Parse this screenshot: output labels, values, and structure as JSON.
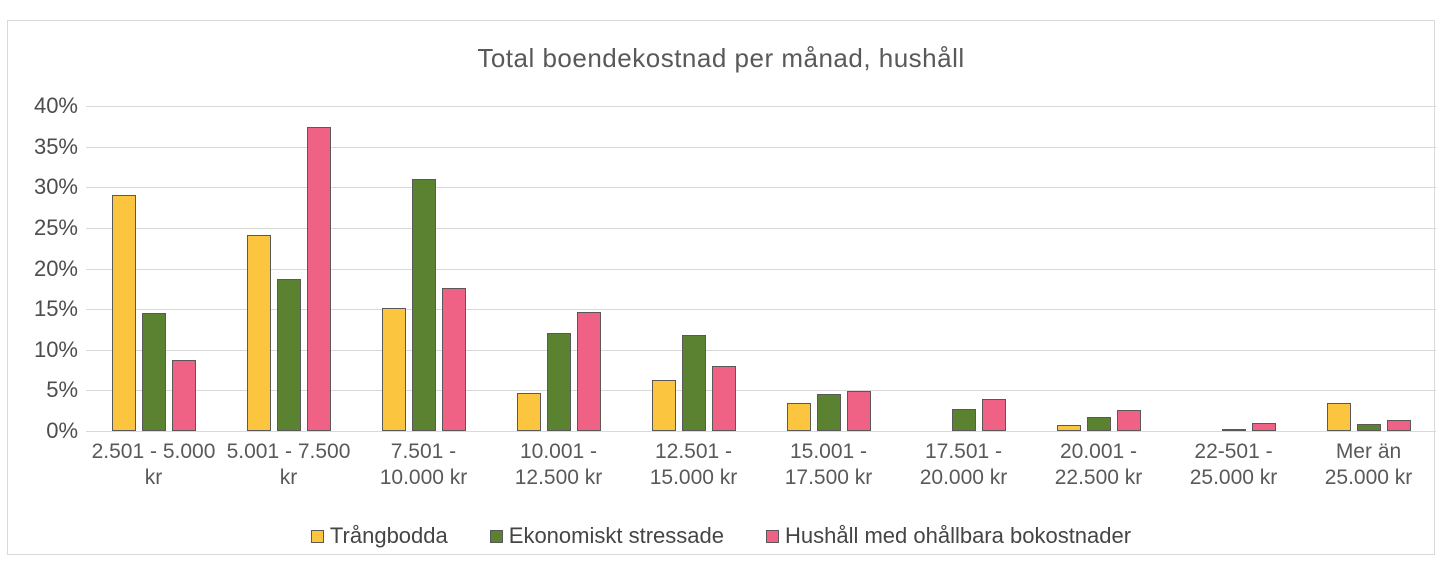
{
  "title": "Total boendekostnad per månad, hushåll",
  "colors": {
    "bar_outline": "#595959",
    "gridline": "#d9d9d9",
    "frame_border": "#d9d9d9",
    "title_text": "#595959",
    "axis_text": "#4d4d4d",
    "series_trangbodda": "#fbc540",
    "series_ekonomiskt_stressade": "#5a8230",
    "series_ohallbara_bokostnader": "#ef6185"
  },
  "chart_data": {
    "type": "bar",
    "title": "Total boendekostnad per månad, hushåll",
    "xlabel": "",
    "ylabel": "",
    "ylim": [
      0,
      40
    ],
    "ytick_step": 5,
    "ytick_labels": [
      "0%",
      "5%",
      "10%",
      "15%",
      "20%",
      "25%",
      "30%",
      "35%",
      "40%"
    ],
    "grid": true,
    "legend_position": "bottom",
    "categories": [
      "2.501 - 5.000 kr",
      "5.001 - 7.500 kr",
      "7.501 - 10.000 kr",
      "10.001 - 12.500 kr",
      "12.501 - 15.000 kr",
      "15.001 - 17.500 kr",
      "17.501 - 20.000 kr",
      "20.001 - 22.500 kr",
      "22-501 - 25.000 kr",
      "Mer än 25.000 kr"
    ],
    "series": [
      {
        "name": "Trångbodda",
        "color": "#fbc540",
        "values": [
          29.0,
          24.1,
          15.2,
          4.7,
          6.3,
          3.5,
          0,
          0.8,
          0,
          3.5
        ]
      },
      {
        "name": "Ekonomiskt stressade",
        "color": "#5a8230",
        "values": [
          14.5,
          18.7,
          31.0,
          12.1,
          11.8,
          4.6,
          2.7,
          1.7,
          0.3,
          0.9
        ]
      },
      {
        "name": "Hushåll med ohållbara bokostnader",
        "color": "#ef6185",
        "values": [
          8.7,
          37.4,
          17.6,
          14.6,
          8.0,
          4.9,
          4.0,
          2.6,
          1.0,
          1.4
        ]
      }
    ]
  }
}
